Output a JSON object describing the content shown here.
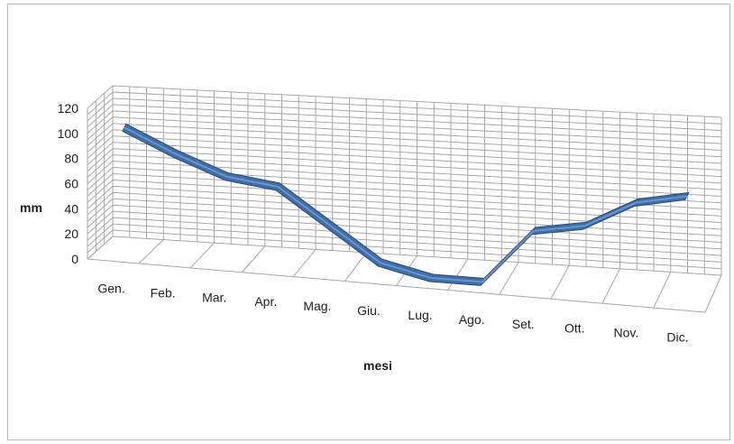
{
  "chart_data": {
    "type": "line",
    "title": "",
    "xlabel": "mesi",
    "ylabel": "mm",
    "categories": [
      "Gen.",
      "Feb.",
      "Mar.",
      "Apr.",
      "Mag.",
      "Giu.",
      "Lug.",
      "Ago.",
      "Set.",
      "Ott.",
      "Nov.",
      "Dic."
    ],
    "series": [
      {
        "name": "",
        "values": [
          98,
          80,
          65,
          60,
          33,
          6,
          -3,
          -3,
          40,
          47,
          68,
          76
        ]
      }
    ],
    "ylim": [
      0,
      120
    ],
    "yticks": [
      0,
      20,
      40,
      60,
      80,
      100,
      120
    ],
    "grid": true,
    "legend": "none",
    "perspective": "3d",
    "colors": {
      "line": "#3f6ea8",
      "line_dark": "#254b7a",
      "grid": "#a8a8a8",
      "text": "#1f1f1f"
    }
  }
}
